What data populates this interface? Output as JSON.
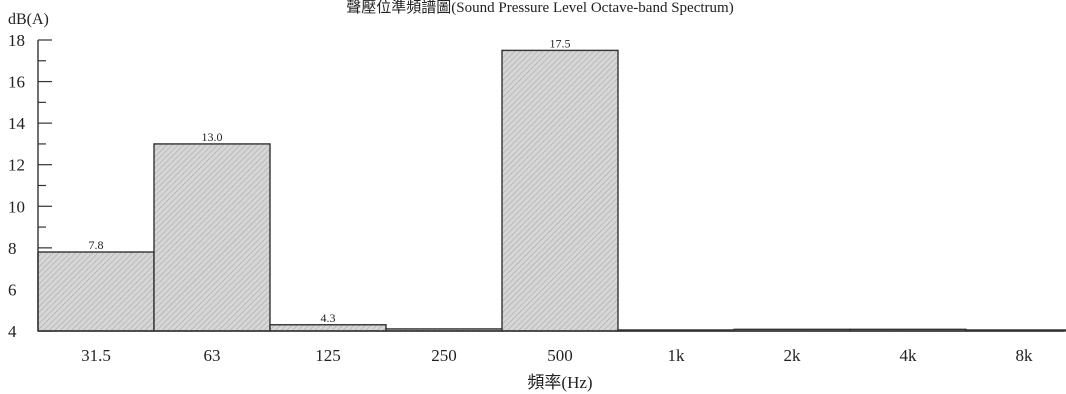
{
  "chart_data": {
    "type": "bar",
    "title": "聲壓位準頻譜圖(Sound Pressure Level Octave-band Spectrum)",
    "ylabel": "dB(A)",
    "xlabel": "頻率(Hz)",
    "categories": [
      "31.5",
      "63",
      "125",
      "250",
      "500",
      "1k",
      "2k",
      "4k",
      "8k"
    ],
    "values": [
      7.8,
      13.0,
      4.3,
      4.1,
      17.5,
      4.05,
      4.08,
      4.08,
      4.05
    ],
    "data_labels": [
      "7.8",
      "13.0",
      "4.3",
      "",
      "17.5",
      "",
      "",
      "",
      ""
    ],
    "ylim": [
      4,
      18
    ],
    "yticks": [
      "4",
      "6",
      "8",
      "10",
      "12",
      "14",
      "16",
      "18"
    ],
    "bar_fill": "#d6d6d6",
    "bar_hatch": "#a9a9a9",
    "grid": false,
    "legend": "none"
  }
}
